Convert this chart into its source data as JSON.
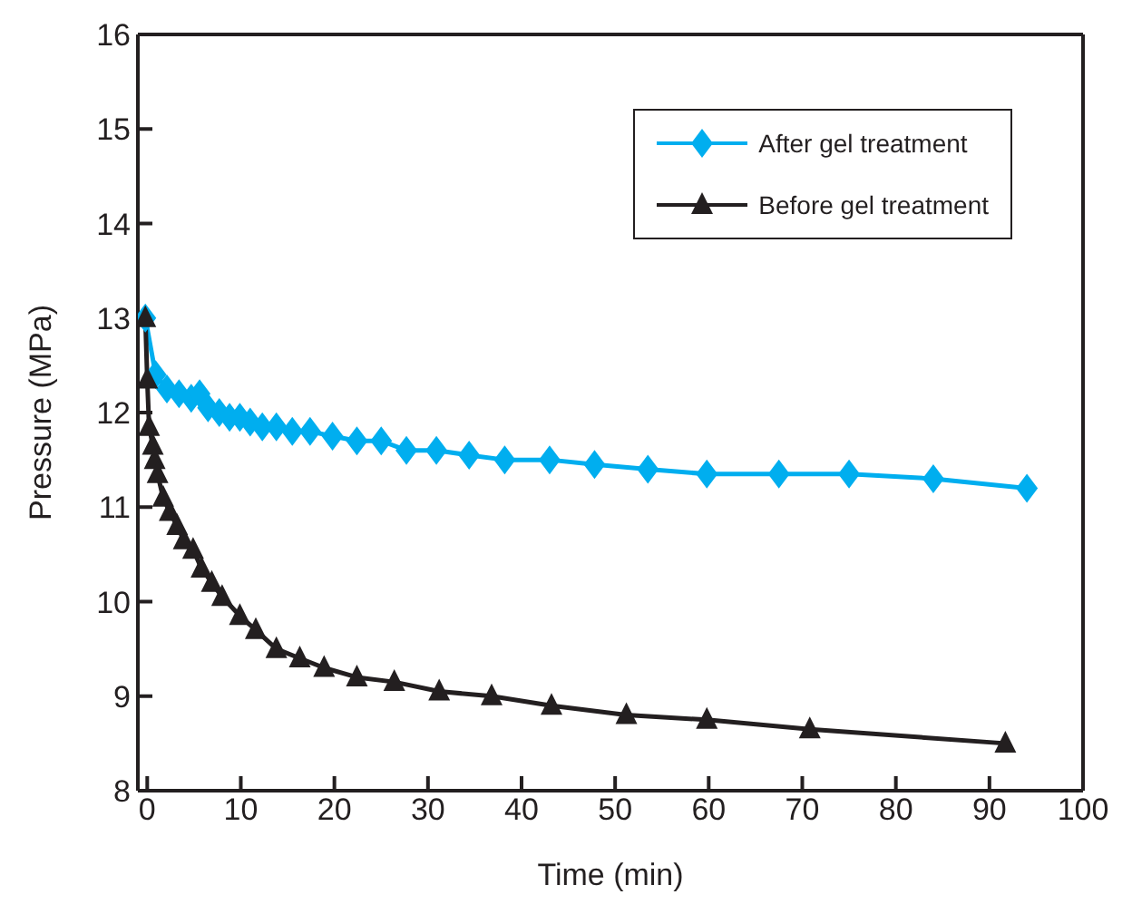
{
  "chart_data": {
    "type": "line",
    "xlabel": "Time (min)",
    "ylabel": "Pressure (MPa)",
    "xlim": [
      -1,
      100
    ],
    "xticks": [
      0,
      10,
      20,
      30,
      40,
      50,
      60,
      70,
      80,
      90,
      100
    ],
    "ylim": [
      8,
      16
    ],
    "yticks": [
      8,
      9,
      10,
      11,
      12,
      13,
      14,
      15,
      16
    ],
    "legend": "top right",
    "line_style": "solid",
    "series": [
      {
        "name": "After gel treatment",
        "color": "#00aeef",
        "marker": "diamond",
        "x": [
          -0.2,
          0.9,
          2.1,
          3.4,
          4.7,
          5.6,
          6.5,
          7.7,
          8.8,
          9.9,
          11,
          12.3,
          13.8,
          15.5,
          17.4,
          19.8,
          22.4,
          25,
          27.7,
          30.9,
          34.4,
          38.2,
          43,
          47.8,
          53.5,
          59.8,
          67.5,
          75,
          84,
          94
        ],
        "values": [
          13.0,
          12.4,
          12.25,
          12.2,
          12.15,
          12.2,
          12.05,
          12.0,
          11.95,
          11.95,
          11.9,
          11.85,
          11.85,
          11.8,
          11.8,
          11.75,
          11.7,
          11.7,
          11.6,
          11.6,
          11.55,
          11.5,
          11.5,
          11.45,
          11.4,
          11.35,
          11.35,
          11.35,
          11.3,
          11.2
        ]
      },
      {
        "name": "Before gel treatment",
        "color": "#231f20",
        "marker": "triangle",
        "x": [
          -0.2,
          0,
          0.2,
          0.6,
          0.8,
          1.1,
          1.7,
          2.4,
          3.2,
          3.9,
          4.9,
          5.8,
          6.9,
          8,
          9.9,
          11.6,
          13.8,
          16.3,
          18.9,
          22.4,
          26.4,
          31.2,
          36.8,
          43.2,
          51.2,
          59.8,
          70.8,
          91.7
        ],
        "values": [
          13.0,
          12.35,
          11.85,
          11.65,
          11.5,
          11.35,
          11.1,
          10.95,
          10.8,
          10.65,
          10.55,
          10.35,
          10.2,
          10.05,
          9.85,
          9.7,
          9.5,
          9.4,
          9.3,
          9.2,
          9.15,
          9.05,
          9.0,
          8.9,
          8.8,
          8.75,
          8.65,
          8.5
        ]
      }
    ]
  }
}
